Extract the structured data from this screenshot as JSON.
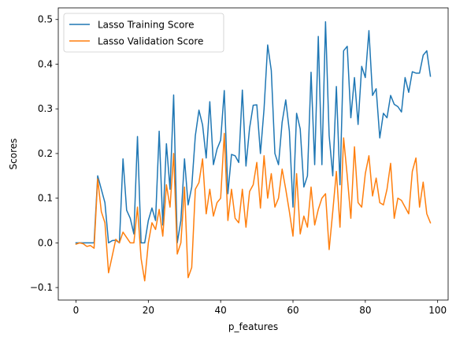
{
  "chart_data": {
    "type": "line",
    "xlabel": "p_features",
    "ylabel": "Scores",
    "xlim": [
      -4.9,
      102.9
    ],
    "ylim": [
      -0.128,
      0.526
    ],
    "xticks": [
      0,
      20,
      40,
      60,
      80,
      100
    ],
    "xtick_labels": [
      "0",
      "20",
      "40",
      "60",
      "80",
      "100"
    ],
    "yticks": [
      -0.1,
      0.0,
      0.1,
      0.2,
      0.3,
      0.4,
      0.5
    ],
    "ytick_labels": [
      "−0.1",
      "0.0",
      "0.1",
      "0.2",
      "0.3",
      "0.4",
      "0.5"
    ],
    "grid": false,
    "legend_position": "upper-left",
    "series": [
      {
        "name": "Lasso Training Score",
        "color": "#1f77b4",
        "x": [
          0,
          1,
          2,
          3,
          4,
          5,
          6,
          7,
          8,
          9,
          10,
          11,
          12,
          13,
          14,
          15,
          16,
          17,
          18,
          19,
          20,
          21,
          22,
          23,
          24,
          25,
          26,
          27,
          28,
          29,
          30,
          31,
          32,
          33,
          34,
          35,
          36,
          37,
          38,
          39,
          40,
          41,
          42,
          43,
          44,
          45,
          46,
          47,
          48,
          49,
          50,
          51,
          52,
          53,
          54,
          55,
          56,
          57,
          58,
          59,
          60,
          61,
          62,
          63,
          64,
          65,
          66,
          67,
          68,
          69,
          70,
          71,
          72,
          73,
          74,
          75,
          76,
          77,
          78,
          79,
          80,
          81,
          82,
          83,
          84,
          85,
          86,
          87,
          88,
          89,
          90,
          91,
          92,
          93,
          94,
          95,
          96,
          97,
          98
        ],
        "values": [
          0.0,
          0.0,
          0.0,
          0.0,
          0.0,
          0.0,
          0.15,
          0.12,
          0.09,
          0.0,
          0.005,
          0.006,
          0.0,
          0.188,
          0.073,
          0.055,
          0.02,
          0.238,
          0.0,
          0.0,
          0.05,
          0.078,
          0.05,
          0.25,
          0.04,
          0.222,
          0.12,
          0.331,
          0.0,
          0.05,
          0.188,
          0.085,
          0.125,
          0.24,
          0.297,
          0.264,
          0.19,
          0.316,
          0.175,
          0.21,
          0.23,
          0.341,
          0.11,
          0.198,
          0.195,
          0.18,
          0.342,
          0.172,
          0.257,
          0.308,
          0.309,
          0.2,
          0.3,
          0.443,
          0.386,
          0.2,
          0.175,
          0.27,
          0.32,
          0.25,
          0.08,
          0.29,
          0.255,
          0.125,
          0.15,
          0.382,
          0.175,
          0.462,
          0.175,
          0.495,
          0.24,
          0.15,
          0.35,
          0.13,
          0.43,
          0.44,
          0.28,
          0.37,
          0.265,
          0.395,
          0.37,
          0.475,
          0.33,
          0.345,
          0.235,
          0.29,
          0.28,
          0.33,
          0.31,
          0.305,
          0.293,
          0.37,
          0.337,
          0.383,
          0.38,
          0.38,
          0.42,
          0.43,
          0.373
        ]
      },
      {
        "name": "Lasso Validation Score",
        "color": "#ff7f0e",
        "x": [
          0,
          1,
          2,
          3,
          4,
          5,
          6,
          7,
          8,
          9,
          10,
          11,
          12,
          13,
          14,
          15,
          16,
          17,
          18,
          19,
          20,
          21,
          22,
          23,
          24,
          25,
          26,
          27,
          28,
          29,
          30,
          31,
          32,
          33,
          34,
          35,
          36,
          37,
          38,
          39,
          40,
          41,
          42,
          43,
          44,
          45,
          46,
          47,
          48,
          49,
          50,
          51,
          52,
          53,
          54,
          55,
          56,
          57,
          58,
          59,
          60,
          61,
          62,
          63,
          64,
          65,
          66,
          67,
          68,
          69,
          70,
          71,
          72,
          73,
          74,
          75,
          76,
          77,
          78,
          79,
          80,
          81,
          82,
          83,
          84,
          85,
          86,
          87,
          88,
          89,
          90,
          91,
          92,
          93,
          94,
          95,
          96,
          97,
          98
        ],
        "values": [
          -0.003,
          0.0,
          -0.002,
          -0.008,
          -0.006,
          -0.012,
          0.143,
          0.07,
          0.045,
          -0.067,
          -0.03,
          0.008,
          0.0,
          0.024,
          0.012,
          0.0,
          0.0,
          0.08,
          -0.035,
          -0.085,
          0.0,
          0.045,
          0.03,
          0.075,
          0.015,
          0.13,
          0.08,
          0.2,
          -0.025,
          0.0,
          0.125,
          -0.078,
          -0.055,
          0.12,
          0.135,
          0.188,
          0.065,
          0.12,
          0.06,
          0.09,
          0.1,
          0.245,
          0.05,
          0.12,
          0.055,
          0.045,
          0.12,
          0.035,
          0.115,
          0.13,
          0.18,
          0.078,
          0.195,
          0.1,
          0.155,
          0.08,
          0.1,
          0.165,
          0.12,
          0.07,
          0.015,
          0.155,
          0.02,
          0.06,
          0.035,
          0.125,
          0.04,
          0.075,
          0.1,
          0.11,
          -0.015,
          0.07,
          0.16,
          0.035,
          0.235,
          0.15,
          0.055,
          0.215,
          0.09,
          0.08,
          0.155,
          0.195,
          0.105,
          0.145,
          0.09,
          0.085,
          0.12,
          0.178,
          0.055,
          0.1,
          0.095,
          0.08,
          0.065,
          0.16,
          0.19,
          0.08,
          0.136,
          0.065,
          0.045
        ]
      }
    ]
  }
}
